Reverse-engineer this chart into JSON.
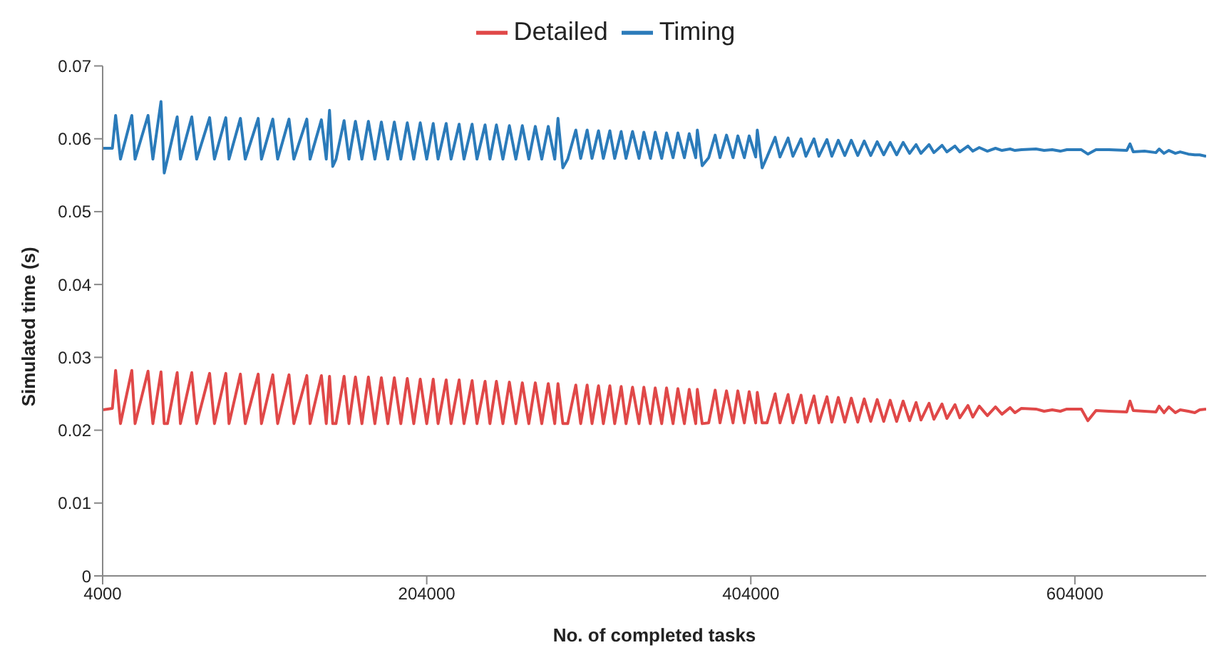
{
  "chart_data": {
    "type": "line",
    "xlabel": "No. of completed tasks",
    "ylabel": "Simulated time (s)",
    "x": [
      4000,
      10000,
      12000,
      15000,
      22000,
      24000,
      32000,
      35000,
      40000,
      42000,
      44000,
      50000,
      52000,
      59000,
      62000,
      70000,
      73000,
      80000,
      82000,
      89000,
      92000,
      100000,
      102000,
      109000,
      112000,
      119000,
      122000,
      130000,
      132000,
      139000,
      142000,
      144000,
      146000,
      148000,
      153000,
      156000,
      160000,
      164000,
      168000,
      172000,
      176000,
      180000,
      184000,
      188000,
      192000,
      196000,
      200000,
      204000,
      208000,
      211000,
      216000,
      219000,
      224000,
      227000,
      232000,
      235000,
      240000,
      243000,
      247000,
      251000,
      255000,
      259000,
      263000,
      267000,
      271000,
      275000,
      279000,
      283000,
      285000,
      288000,
      291000,
      296000,
      299000,
      303000,
      306000,
      310000,
      313000,
      317000,
      320000,
      324000,
      327000,
      331000,
      335000,
      338000,
      342000,
      345000,
      349000,
      352000,
      356000,
      359000,
      363000,
      366000,
      370000,
      371000,
      374000,
      378000,
      382000,
      385000,
      389000,
      393000,
      396000,
      400000,
      403000,
      407000,
      408000,
      411000,
      414000,
      419000,
      422000,
      427000,
      430000,
      435000,
      438000,
      443000,
      446000,
      451000,
      454000,
      458000,
      462000,
      466000,
      470000,
      474000,
      478000,
      482000,
      486000,
      490000,
      494000,
      498000,
      502000,
      506000,
      509000,
      514000,
      517000,
      522000,
      525000,
      530000,
      533000,
      538000,
      541000,
      545000,
      550000,
      555000,
      559000,
      564000,
      567000,
      571000,
      580000,
      585000,
      590000,
      595000,
      599000,
      608000,
      612000,
      617000,
      625000,
      636000,
      638000,
      640000,
      647000,
      654000,
      656000,
      659000,
      662000,
      666000,
      669000,
      674000,
      678000,
      681000,
      685000
    ],
    "series": [
      {
        "name": "Timing",
        "color": "#2b7bba",
        "values": [
          0.0587,
          0.0587,
          0.0632,
          0.0572,
          0.0632,
          0.0572,
          0.0632,
          0.0572,
          0.0651,
          0.0553,
          0.0572,
          0.063,
          0.0572,
          0.063,
          0.0572,
          0.0629,
          0.0572,
          0.0629,
          0.0572,
          0.0628,
          0.0572,
          0.0628,
          0.0572,
          0.0627,
          0.0572,
          0.0627,
          0.0572,
          0.0627,
          0.0572,
          0.0626,
          0.0572,
          0.0639,
          0.0562,
          0.0572,
          0.0625,
          0.0572,
          0.0624,
          0.0572,
          0.0624,
          0.0572,
          0.0623,
          0.0572,
          0.0623,
          0.0572,
          0.0622,
          0.0572,
          0.0622,
          0.0572,
          0.0621,
          0.0572,
          0.0621,
          0.0572,
          0.062,
          0.0572,
          0.062,
          0.0572,
          0.0619,
          0.0572,
          0.0619,
          0.0572,
          0.0618,
          0.0572,
          0.0618,
          0.0572,
          0.0617,
          0.0572,
          0.0617,
          0.0572,
          0.0628,
          0.056,
          0.0572,
          0.0612,
          0.0573,
          0.0612,
          0.0573,
          0.0611,
          0.0573,
          0.0611,
          0.0573,
          0.061,
          0.0573,
          0.061,
          0.0573,
          0.0609,
          0.0573,
          0.0609,
          0.0573,
          0.0608,
          0.0574,
          0.0608,
          0.0574,
          0.0607,
          0.0574,
          0.0612,
          0.0563,
          0.0574,
          0.0605,
          0.0574,
          0.0605,
          0.0574,
          0.0604,
          0.0574,
          0.0604,
          0.0575,
          0.0612,
          0.056,
          0.0575,
          0.0602,
          0.0575,
          0.0601,
          0.0576,
          0.06,
          0.0576,
          0.06,
          0.0576,
          0.0599,
          0.0576,
          0.0598,
          0.0577,
          0.0598,
          0.0577,
          0.0597,
          0.0577,
          0.0596,
          0.0578,
          0.0595,
          0.0578,
          0.0595,
          0.058,
          0.0592,
          0.058,
          0.0592,
          0.0581,
          0.0591,
          0.0582,
          0.059,
          0.0582,
          0.059,
          0.0583,
          0.0588,
          0.0583,
          0.0587,
          0.0584,
          0.0586,
          0.0584,
          0.0585,
          0.0586,
          0.0584,
          0.0585,
          0.0583,
          0.0585,
          0.0585,
          0.0579,
          0.0585,
          0.0585,
          0.0584,
          0.0593,
          0.0582,
          0.0583,
          0.0581,
          0.0586,
          0.058,
          0.0584,
          0.058,
          0.0582,
          0.0579,
          0.0578,
          0.0578,
          0.0576
        ]
      },
      {
        "name": "Detailed",
        "color": "#e04848",
        "values": [
          0.0228,
          0.023,
          0.0282,
          0.0209,
          0.0282,
          0.0209,
          0.0281,
          0.0209,
          0.028,
          0.0209,
          0.0209,
          0.0279,
          0.0209,
          0.0279,
          0.0209,
          0.0278,
          0.0209,
          0.0278,
          0.0209,
          0.0277,
          0.0209,
          0.0277,
          0.0209,
          0.0276,
          0.0209,
          0.0276,
          0.0209,
          0.0275,
          0.0209,
          0.0275,
          0.0209,
          0.0274,
          0.0209,
          0.0209,
          0.0274,
          0.0209,
          0.0273,
          0.0209,
          0.0273,
          0.0209,
          0.0272,
          0.0209,
          0.0272,
          0.0209,
          0.0271,
          0.0209,
          0.027,
          0.0209,
          0.027,
          0.0209,
          0.0269,
          0.0209,
          0.0269,
          0.0209,
          0.0268,
          0.0209,
          0.0267,
          0.0209,
          0.0267,
          0.0209,
          0.0266,
          0.0209,
          0.0265,
          0.0209,
          0.0265,
          0.0209,
          0.0264,
          0.0209,
          0.0264,
          0.0209,
          0.0209,
          0.0262,
          0.0209,
          0.0262,
          0.0209,
          0.0261,
          0.0209,
          0.0261,
          0.0209,
          0.026,
          0.0209,
          0.0259,
          0.0209,
          0.0259,
          0.0209,
          0.0258,
          0.0209,
          0.0258,
          0.0209,
          0.0257,
          0.0209,
          0.0256,
          0.0209,
          0.0256,
          0.0209,
          0.021,
          0.0255,
          0.021,
          0.0254,
          0.021,
          0.0254,
          0.021,
          0.0253,
          0.021,
          0.0252,
          0.021,
          0.021,
          0.025,
          0.021,
          0.0249,
          0.021,
          0.0248,
          0.021,
          0.0247,
          0.021,
          0.0246,
          0.0211,
          0.0245,
          0.0211,
          0.0244,
          0.0211,
          0.0243,
          0.0212,
          0.0242,
          0.0212,
          0.0241,
          0.0212,
          0.024,
          0.0213,
          0.0238,
          0.0214,
          0.0237,
          0.0215,
          0.0236,
          0.0216,
          0.0235,
          0.0217,
          0.0234,
          0.0218,
          0.0233,
          0.022,
          0.0232,
          0.0222,
          0.0231,
          0.0224,
          0.023,
          0.0229,
          0.0226,
          0.0228,
          0.0226,
          0.0229,
          0.0229,
          0.0213,
          0.0227,
          0.0226,
          0.0225,
          0.024,
          0.0227,
          0.0226,
          0.0225,
          0.0233,
          0.0224,
          0.0232,
          0.0224,
          0.0228,
          0.0226,
          0.0224,
          0.0228,
          0.0229
        ]
      }
    ],
    "xlim": [
      4000,
      685000
    ],
    "xticks": [
      4000,
      204000,
      404000,
      604000
    ],
    "ylim": [
      0,
      0.07
    ],
    "yticks": [
      0,
      0.01,
      0.02,
      0.03,
      0.04,
      0.05,
      0.06,
      0.07
    ],
    "grid": false,
    "legend": "top",
    "marker": "none",
    "line_style": "solid"
  }
}
